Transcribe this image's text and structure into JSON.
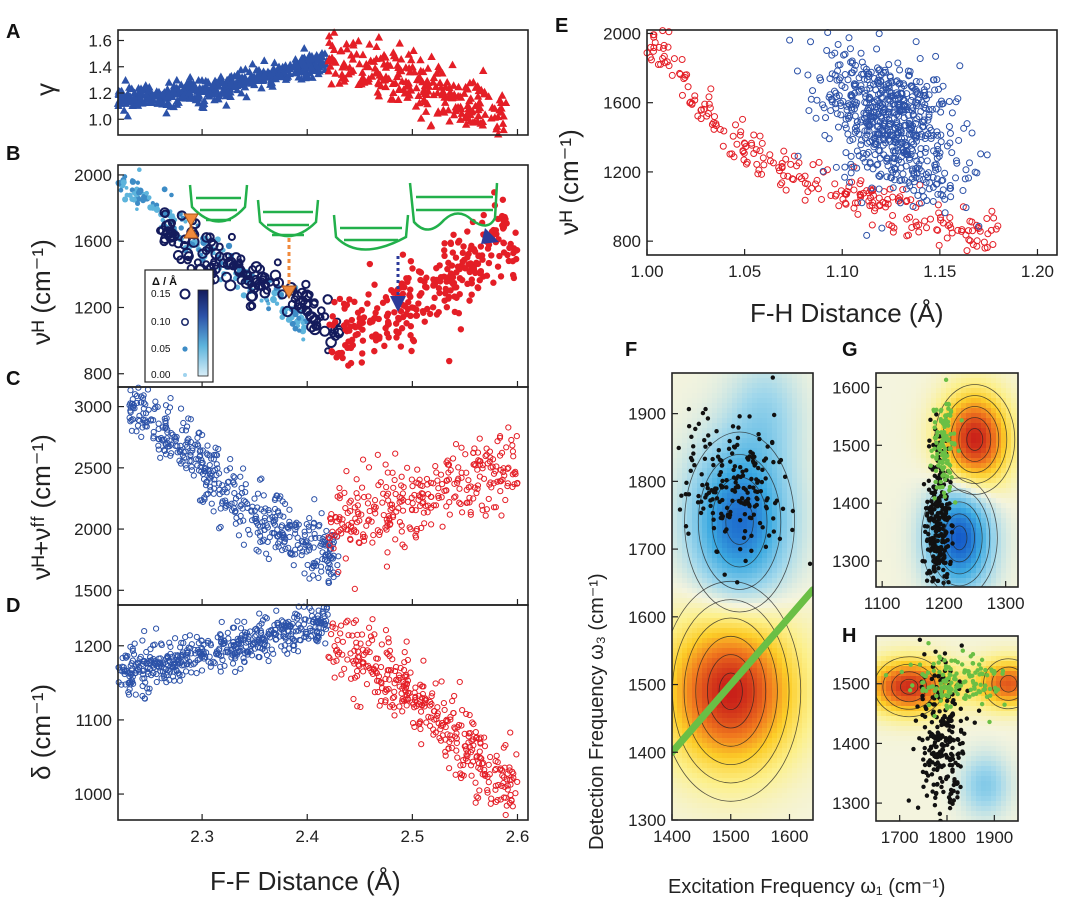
{
  "colors": {
    "red": "#e41e26",
    "blue": "#2c52a8",
    "navy": "#141b5c",
    "lightblue": "#5db4dc",
    "green": "#22b04b",
    "orange": "#f08a3c",
    "black": "#111111"
  },
  "shared": {
    "ff_xlabel": "F-F Distance (Å)",
    "ff_xticks": [
      2.3,
      2.4,
      2.5,
      2.6
    ],
    "ff_xlim": [
      2.22,
      2.61
    ],
    "excitation_label": "Excitation Frequency ω₁ (cm⁻¹)",
    "detection_label": "Detection Frequency ω₃ (cm⁻¹)"
  },
  "chart_data": [
    {
      "panel": "A",
      "type": "scatter",
      "marker": "triangle",
      "ylabel": "γ",
      "ylim": [
        0.88,
        1.68
      ],
      "yticks": [
        "1.0",
        "1.2",
        "1.4",
        "1.6"
      ],
      "series": [
        {
          "name": "blue",
          "color": "blue",
          "trend": [
            [
              2.22,
              1.15
            ],
            [
              2.31,
              1.22
            ],
            [
              2.36,
              1.33
            ],
            [
              2.42,
              1.45
            ]
          ],
          "spread": 0.05,
          "count": 420,
          "xrange": [
            2.22,
            2.42
          ]
        },
        {
          "name": "red",
          "color": "red",
          "trend": [
            [
              2.42,
              1.45
            ],
            [
              2.48,
              1.32
            ],
            [
              2.53,
              1.2
            ],
            [
              2.58,
              1.02
            ]
          ],
          "spread": 0.11,
          "count": 260,
          "xrange": [
            2.42,
            2.59
          ]
        }
      ]
    },
    {
      "panel": "B",
      "type": "scatter",
      "marker": "circle",
      "ylabel": "νᴴ (cm⁻¹)",
      "ylim": [
        720,
        2060
      ],
      "yticks": [
        "800",
        "1200",
        "1600",
        "2000"
      ],
      "colorbar": {
        "title": "Δ / Å",
        "labels": [
          "0.15",
          "0.10",
          "0.05",
          "0.00"
        ]
      },
      "series": [
        {
          "name": "low-delta",
          "color": "lightblue",
          "trend": [
            [
              2.22,
              1990
            ],
            [
              2.3,
              1560
            ],
            [
              2.37,
              1260
            ],
            [
              2.4,
              1080
            ]
          ],
          "spread": 55,
          "count": 180,
          "xrange": [
            2.22,
            2.4
          ]
        },
        {
          "name": "high-delta",
          "color": "navy",
          "trend": [
            [
              2.26,
              1700
            ],
            [
              2.32,
              1450
            ],
            [
              2.38,
              1280
            ],
            [
              2.43,
              1060
            ]
          ],
          "spread": 70,
          "count": 150,
          "xrange": [
            2.26,
            2.43
          ]
        },
        {
          "name": "red",
          "color": "red",
          "trend": [
            [
              2.42,
              1000
            ],
            [
              2.47,
              1130
            ],
            [
              2.52,
              1300
            ],
            [
              2.58,
              1560
            ]
          ],
          "spread": 110,
          "count": 300,
          "xrange": [
            2.42,
            2.6
          ]
        }
      ]
    },
    {
      "panel": "C",
      "type": "scatter",
      "marker": "ring",
      "ylabel": "νᴴ+νᶠᶠ (cm⁻¹)",
      "ylim": [
        1380,
        3160
      ],
      "yticks": [
        "1500",
        "2000",
        "2500",
        "3000"
      ],
      "series": [
        {
          "name": "blue",
          "color": "blue",
          "trend": [
            [
              2.23,
              3050
            ],
            [
              2.29,
              2620
            ],
            [
              2.35,
              2100
            ],
            [
              2.42,
              1800
            ]
          ],
          "spread": 140,
          "count": 480,
          "xrange": [
            2.23,
            2.43
          ]
        },
        {
          "name": "red",
          "color": "red",
          "trend": [
            [
              2.42,
              2000
            ],
            [
              2.48,
              2180
            ],
            [
              2.54,
              2320
            ],
            [
              2.59,
              2520
            ]
          ],
          "spread": 160,
          "count": 320,
          "xrange": [
            2.42,
            2.6
          ]
        }
      ]
    },
    {
      "panel": "D",
      "type": "scatter",
      "marker": "ring",
      "ylabel": "δ (cm⁻¹)",
      "ylim": [
        965,
        1255
      ],
      "yticks": [
        "1000",
        "1100",
        "1200"
      ],
      "series": [
        {
          "name": "blue",
          "color": "blue",
          "trend": [
            [
              2.22,
              1160
            ],
            [
              2.3,
              1190
            ],
            [
              2.37,
              1215
            ],
            [
              2.42,
              1230
            ]
          ],
          "spread": 14,
          "count": 520,
          "xrange": [
            2.22,
            2.42
          ]
        },
        {
          "name": "red",
          "color": "red",
          "trend": [
            [
              2.42,
              1200
            ],
            [
              2.48,
              1160
            ],
            [
              2.54,
              1080
            ],
            [
              2.59,
              1010
            ]
          ],
          "spread": 26,
          "count": 380,
          "xrange": [
            2.42,
            2.6
          ]
        }
      ]
    },
    {
      "panel": "E",
      "type": "scatter",
      "marker": "ring",
      "xlabel": "F-H Distance (Å)",
      "ylabel": "νᴴ (cm⁻¹)",
      "xlim": [
        1.0,
        1.21
      ],
      "ylim": [
        720,
        2020
      ],
      "xticks": [
        "1.00",
        "1.05",
        "1.10",
        "1.15",
        "1.20"
      ],
      "yticks": [
        "800",
        "1200",
        "1600",
        "2000"
      ],
      "series": [
        {
          "name": "red",
          "color": "red",
          "trend": [
            [
              1.005,
              1930
            ],
            [
              1.04,
              1420
            ],
            [
              1.07,
              1210
            ],
            [
              1.12,
              1020
            ],
            [
              1.17,
              860
            ]
          ],
          "spread": 70,
          "count": 260,
          "xrange": [
            1.0,
            1.18
          ]
        },
        {
          "name": "blue",
          "color": "blue",
          "cloud": {
            "cx": 1.125,
            "cy": 1480,
            "sx": 0.017,
            "sy": 190
          },
          "count": 650
        }
      ]
    },
    {
      "panel": "F",
      "type": "heatmap",
      "xlim": [
        1400,
        1640
      ],
      "ylim": [
        1300,
        1960
      ],
      "xticks": [
        "1400",
        "1500",
        "1600"
      ],
      "yticks": [
        "1300",
        "1400",
        "1500",
        "1600",
        "1700",
        "1800",
        "1900"
      ],
      "peaks": [
        {
          "x": 1500,
          "y": 1490,
          "sign": "positive"
        },
        {
          "x": 1515,
          "y": 1740,
          "sign": "negative"
        }
      ],
      "overlays": [
        {
          "color": "black",
          "cx": 1500,
          "cy": 1800,
          "sx": 45,
          "sy": 50,
          "count": 200
        },
        {
          "color": "green",
          "line": [
            [
              1400,
              1400
            ],
            [
              1640,
              1640
            ]
          ]
        }
      ]
    },
    {
      "panel": "G",
      "type": "heatmap",
      "xlim": [
        1090,
        1320
      ],
      "ylim": [
        1255,
        1625
      ],
      "xticks": [
        "1100",
        "1200",
        "1300"
      ],
      "yticks": [
        "1300",
        "1400",
        "1500",
        "1600"
      ],
      "peaks": [
        {
          "x": 1250,
          "y": 1510,
          "sign": "positive"
        },
        {
          "x": 1225,
          "y": 1340,
          "sign": "negative"
        }
      ],
      "overlays": [
        {
          "color": "black",
          "cx": 1190,
          "cy": 1360,
          "sx": 10,
          "sy": 70,
          "count": 260
        },
        {
          "color": "green",
          "cx": 1200,
          "cy": 1500,
          "sx": 9,
          "sy": 45,
          "count": 120
        }
      ]
    },
    {
      "panel": "H",
      "type": "heatmap",
      "xlim": [
        1650,
        1950
      ],
      "ylim": [
        1270,
        1580
      ],
      "xticks": [
        "1700",
        "1800",
        "1900"
      ],
      "yticks": [
        "1300",
        "1400",
        "1500"
      ],
      "peaks": [
        {
          "x": 1720,
          "y": 1495,
          "sign": "positive"
        },
        {
          "x": 1930,
          "y": 1500,
          "sign": "positive"
        }
      ],
      "overlays": [
        {
          "color": "black",
          "cx": 1790,
          "cy": 1400,
          "sx": 25,
          "sy": 65,
          "count": 240
        },
        {
          "color": "green",
          "cx": 1820,
          "cy": 1500,
          "sx": 55,
          "sy": 25,
          "count": 140
        }
      ]
    }
  ]
}
